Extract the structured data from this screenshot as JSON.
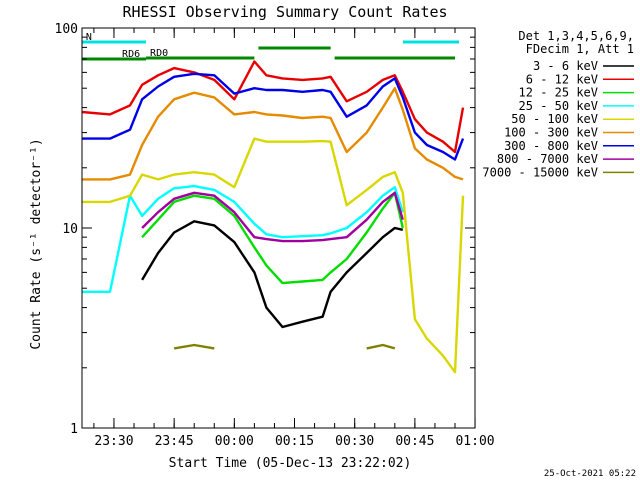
{
  "chart_data": {
    "type": "line",
    "title": "RHESSI Observing Summary Count Rates",
    "xlabel": "Start Time (05-Dec-13 23:22:02)",
    "ylabel": "Count Rate (s⁻¹ detector⁻¹)",
    "y_scale": "log",
    "ylim": [
      1,
      100
    ],
    "xlim": [
      "23:22:02",
      "00:59:59"
    ],
    "x_ticks": [
      "23:30",
      "23:45",
      "00:00",
      "00:15",
      "00:30",
      "00:45",
      "01:00"
    ],
    "y_ticks": [
      "1",
      "10",
      "100"
    ],
    "footer": "25-Oct-2021 05:22",
    "legend_header": [
      "Det 1,3,4,5,6,9,",
      "FDecim 1, Att 1"
    ],
    "legend_position": "right",
    "x": [
      "23:22",
      "23:29",
      "23:34",
      "23:37",
      "23:41",
      "23:45",
      "23:50",
      "23:55",
      "00:00",
      "00:05",
      "00:08",
      "00:12",
      "00:17",
      "00:22",
      "00:24",
      "00:28",
      "00:33",
      "00:37",
      "00:40",
      "00:42",
      "00:45",
      "00:48",
      "00:52",
      "00:55",
      "00:57"
    ],
    "series": [
      {
        "name": "3 - 6 keV",
        "color": "#000000",
        "values": [
          null,
          null,
          null,
          5.5,
          7.5,
          9.5,
          10.8,
          10.3,
          8.5,
          6.0,
          4.0,
          3.2,
          3.4,
          3.6,
          4.8,
          6.0,
          7.5,
          9.0,
          10.0,
          9.8,
          null,
          null,
          null,
          null,
          null
        ]
      },
      {
        "name": "6 - 12 keV",
        "color": "#e80000",
        "values": [
          38,
          37,
          41,
          52,
          58,
          63,
          60,
          55,
          44,
          68,
          58,
          56,
          55,
          56,
          57,
          43,
          48,
          55,
          58,
          48,
          35,
          30,
          27,
          24,
          40
        ]
      },
      {
        "name": "12 - 25 keV",
        "color": "#00dd00",
        "values": [
          null,
          null,
          null,
          9.0,
          11.0,
          13.5,
          14.5,
          14.0,
          11.5,
          8.0,
          6.5,
          5.3,
          5.4,
          5.5,
          6.0,
          7.0,
          9.5,
          12.5,
          15.0,
          10.0,
          null,
          null,
          null,
          null,
          null
        ]
      },
      {
        "name": "25 - 50 keV",
        "color": "#00ffff",
        "values": [
          4.8,
          4.8,
          14.5,
          11.5,
          14.0,
          15.8,
          16.2,
          15.5,
          13.5,
          10.5,
          9.3,
          9.0,
          9.1,
          9.2,
          9.4,
          10.0,
          12.0,
          14.5,
          16.0,
          12.0,
          null,
          null,
          null,
          null,
          4.8
        ]
      },
      {
        "name": "50 - 100 keV",
        "color": "#d8d800",
        "values": [
          13.5,
          13.5,
          14.5,
          18.5,
          17.5,
          18.5,
          19.0,
          18.5,
          16.0,
          28.0,
          27.0,
          27.0,
          27.0,
          27.2,
          27.0,
          13.0,
          15.5,
          18.0,
          19.0,
          15.0,
          3.5,
          2.8,
          2.3,
          1.9,
          14.5
        ]
      },
      {
        "name": "100 - 300 keV",
        "color": "#e68a00",
        "values": [
          17.5,
          17.5,
          18.5,
          26.0,
          36.0,
          44.0,
          47.5,
          45.0,
          37.0,
          38.0,
          37.0,
          36.5,
          35.5,
          36.0,
          35.5,
          24.0,
          30.0,
          40.0,
          50.0,
          39.0,
          25.0,
          22.0,
          20.0,
          18.0,
          17.5
        ]
      },
      {
        "name": "300 - 800 keV",
        "color": "#0000e8",
        "values": [
          28,
          28,
          31,
          44,
          51,
          57,
          59,
          58,
          47,
          50,
          49,
          49,
          48,
          49,
          48,
          36,
          41,
          51,
          56,
          45,
          30,
          26,
          24,
          22,
          28
        ]
      },
      {
        "name": "800 - 7000 keV",
        "color": "#a000a0",
        "values": [
          null,
          null,
          null,
          10.0,
          12.0,
          14.0,
          15.0,
          14.5,
          12.0,
          9.0,
          8.8,
          8.6,
          8.6,
          8.7,
          8.8,
          9.0,
          11.0,
          13.5,
          15.0,
          11.0,
          null,
          null,
          null,
          null,
          null
        ]
      },
      {
        "name": "7000 - 15000 keV",
        "color": "#808000",
        "values": [
          null,
          null,
          null,
          null,
          null,
          2.5,
          2.6,
          2.5,
          null,
          null,
          null,
          null,
          null,
          null,
          null,
          null,
          2.5,
          2.6,
          2.5,
          null,
          null,
          null,
          null,
          null,
          null
        ]
      }
    ],
    "annotations": [
      {
        "label": "RD6",
        "start": "23:22",
        "end": "23:38"
      },
      {
        "label": "N",
        "start": "23:22",
        "end": "23:38"
      },
      {
        "label": "RD0",
        "start": "23:38",
        "end": "00:05"
      },
      {
        "label": "",
        "start": "00:06",
        "end": "00:24"
      },
      {
        "label": "",
        "start": "00:25",
        "end": "00:55"
      },
      {
        "label": "",
        "start": "00:42",
        "end": "00:56"
      }
    ],
    "grid": false
  }
}
